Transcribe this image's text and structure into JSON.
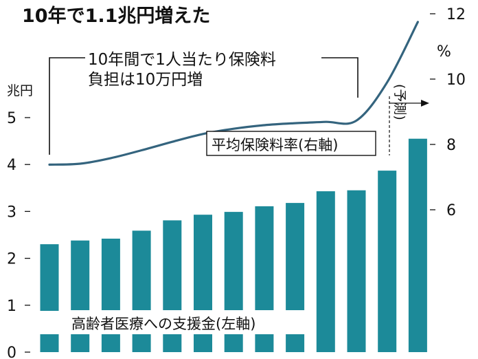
{
  "chart_data": {
    "type": "bar",
    "title": "10年で1.1兆円増えた",
    "categories": [
      "",
      "",
      "",
      "",
      "",
      "",
      "",
      "",
      "",
      "",
      "",
      "",
      ""
    ],
    "series": [
      {
        "name": "高齢者医療への支援金(左軸)",
        "type": "bar",
        "axis": "left",
        "values": [
          2.3,
          2.38,
          2.42,
          2.59,
          2.81,
          2.93,
          2.99,
          3.11,
          3.18,
          3.43,
          3.45,
          3.87,
          4.55
        ]
      },
      {
        "name": "平均保険料率(右軸)",
        "type": "line",
        "axis": "right",
        "values": [
          7.38,
          7.41,
          7.58,
          7.82,
          8.08,
          8.32,
          8.48,
          8.59,
          8.65,
          8.69,
          8.73,
          9.9,
          11.75
        ]
      }
    ],
    "left_axis": {
      "label": "兆円",
      "ticks": [
        "0",
        "1",
        "2",
        "3",
        "4",
        "5"
      ],
      "range": [
        0,
        5.55
      ]
    },
    "right_axis": {
      "label": "%",
      "ticks": [
        "6",
        "8",
        "10",
        "12"
      ],
      "range": [
        4.28,
        12.29
      ]
    },
    "annotations": {
      "callout_line1": "10年間で1人当たり保険料",
      "callout_line2": "負担は10万円増",
      "forecast": "(予測)",
      "rate_label": "平均保険料率(右軸)",
      "support_label": "高齢者医療への支援金(左軸)"
    },
    "colors": {
      "bar": "#1c8a99",
      "line": "#34647e",
      "text": "#111111"
    },
    "grid": false,
    "legend": "none"
  }
}
